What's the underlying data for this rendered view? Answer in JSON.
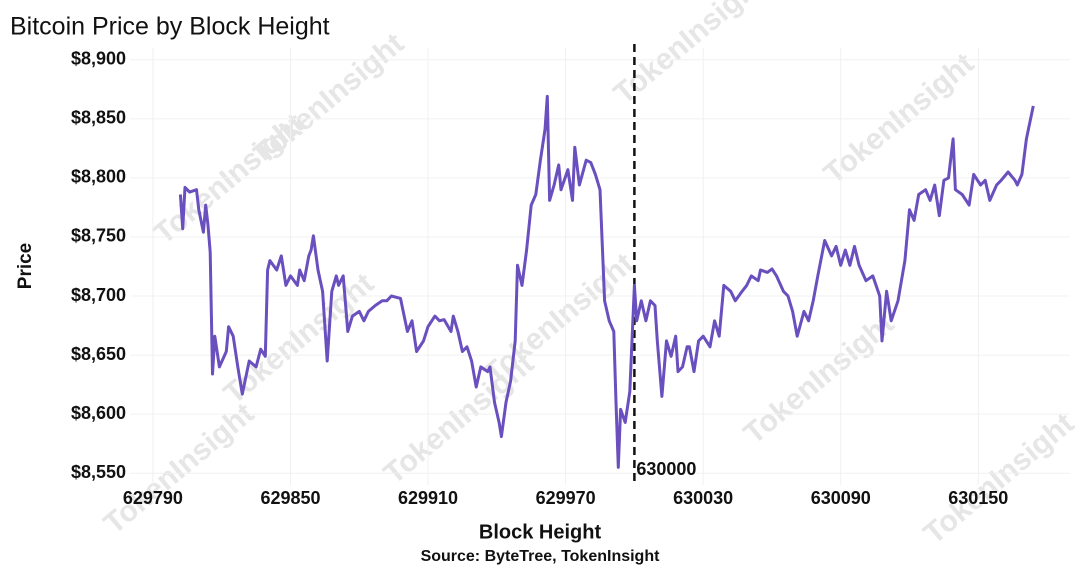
{
  "chart_data": {
    "type": "line",
    "title": "Bitcoin Price by Block Height",
    "x_label": "Block Height",
    "y_label": "Price",
    "source": "Source: ByteTree, TokenInsight",
    "watermark": "TokenInsight",
    "vline": 630000,
    "grid": true,
    "xlim": [
      629780,
      630190
    ],
    "ylim": [
      8540,
      8910
    ],
    "xticks": [
      629790,
      629850,
      629910,
      629970,
      630030,
      630090,
      630150
    ],
    "yticks": [
      {
        "value": 8550,
        "label": "$8,550"
      },
      {
        "value": 8600,
        "label": "$8,600"
      },
      {
        "value": 8650,
        "label": "$8,650"
      },
      {
        "value": 8700,
        "label": "$8,700"
      },
      {
        "value": 8750,
        "label": "$8,750"
      },
      {
        "value": 8800,
        "label": "$8,800"
      },
      {
        "value": 8850,
        "label": "$8,850"
      },
      {
        "value": 8900,
        "label": "$8,900"
      }
    ],
    "x": [
      629802,
      629803,
      629804,
      629806,
      629809,
      629810,
      629812,
      629813,
      629814,
      629815,
      629816,
      629817,
      629819,
      629822,
      629823,
      629825,
      629827,
      629829,
      629832,
      629835,
      629837,
      629839,
      629840,
      629841,
      629844,
      629846,
      629848,
      629850,
      629853,
      629854,
      629856,
      629858,
      629859,
      629860,
      629862,
      629864,
      629866,
      629868,
      629870,
      629871,
      629873,
      629875,
      629877,
      629880,
      629882,
      629884,
      629887,
      629890,
      629892,
      629894,
      629898,
      629901,
      629903,
      629905,
      629908,
      629910,
      629913,
      629915,
      629917,
      629920,
      629921,
      629923,
      629925,
      629927,
      629929,
      629931,
      629933,
      629936,
      629937,
      629939,
      629941,
      629942,
      629944,
      629946,
      629948,
      629949,
      629951,
      629953,
      629955,
      629957,
      629959,
      629961,
      629962,
      629963,
      629965,
      629967,
      629968,
      629971,
      629973,
      629974,
      629976,
      629979,
      629981,
      629983,
      629985,
      629987,
      629989,
      629991,
      629992,
      629993,
      629994,
      629996,
      629998,
      630000,
      630001,
      630003,
      630005,
      630007,
      630009,
      630010,
      630012,
      630014,
      630016,
      630018,
      630019,
      630021,
      630023,
      630024,
      630026,
      630028,
      630030,
      630033,
      630035,
      630037,
      630039,
      630042,
      630044,
      630047,
      630049,
      630051,
      630054,
      630055,
      630058,
      630060,
      630062,
      630065,
      630067,
      630069,
      630071,
      630074,
      630076,
      630078,
      630080,
      630083,
      630086,
      630088,
      630090,
      630092,
      630094,
      630096,
      630098,
      630101,
      630104,
      630107,
      630108,
      630110,
      630112,
      630115,
      630118,
      630120,
      630122,
      630124,
      630127,
      630129,
      630131,
      630133,
      630135,
      630137,
      630139,
      630140,
      630143,
      630146,
      630148,
      630151,
      630153,
      630155,
      630158,
      630160,
      630163,
      630166,
      630167,
      630169,
      630171,
      630174
    ],
    "series": [
      {
        "name": "Price",
        "color": "#6a4fbf",
        "values": [
          8786,
          8757,
          8792,
          8788,
          8790,
          8773,
          8754,
          8777,
          8760,
          8737,
          8634,
          8666,
          8640,
          8653,
          8674,
          8666,
          8640,
          8617,
          8645,
          8640,
          8655,
          8649,
          8722,
          8730,
          8722,
          8734,
          8709,
          8717,
          8709,
          8722,
          8713,
          8734,
          8739,
          8751,
          8722,
          8704,
          8645,
          8704,
          8717,
          8709,
          8717,
          8670,
          8683,
          8687,
          8679,
          8687,
          8692,
          8696,
          8696,
          8700,
          8698,
          8670,
          8679,
          8653,
          8662,
          8674,
          8683,
          8679,
          8680,
          8670,
          8683,
          8670,
          8653,
          8657,
          8645,
          8623,
          8640,
          8636,
          8640,
          8610,
          8593,
          8581,
          8610,
          8628,
          8662,
          8726,
          8709,
          8739,
          8777,
          8786,
          8815,
          8841,
          8869,
          8781,
          8794,
          8811,
          8790,
          8807,
          8781,
          8826,
          8794,
          8815,
          8813,
          8803,
          8790,
          8696,
          8679,
          8670,
          8610,
          8555,
          8604,
          8593,
          8619,
          8709,
          8679,
          8696,
          8679,
          8696,
          8692,
          8662,
          8615,
          8662,
          8649,
          8666,
          8636,
          8640,
          8657,
          8657,
          8636,
          8662,
          8666,
          8657,
          8679,
          8666,
          8709,
          8704,
          8696,
          8704,
          8709,
          8717,
          8713,
          8722,
          8720,
          8723,
          8717,
          8704,
          8700,
          8687,
          8666,
          8687,
          8679,
          8696,
          8717,
          8747,
          8734,
          8742,
          8726,
          8739,
          8726,
          8742,
          8726,
          8713,
          8717,
          8700,
          8662,
          8704,
          8679,
          8696,
          8730,
          8773,
          8764,
          8786,
          8790,
          8781,
          8794,
          8768,
          8798,
          8800,
          8833,
          8790,
          8786,
          8777,
          8803,
          8794,
          8798,
          8781,
          8794,
          8798,
          8805,
          8798,
          8794,
          8803,
          8833,
          8861
        ]
      }
    ]
  }
}
